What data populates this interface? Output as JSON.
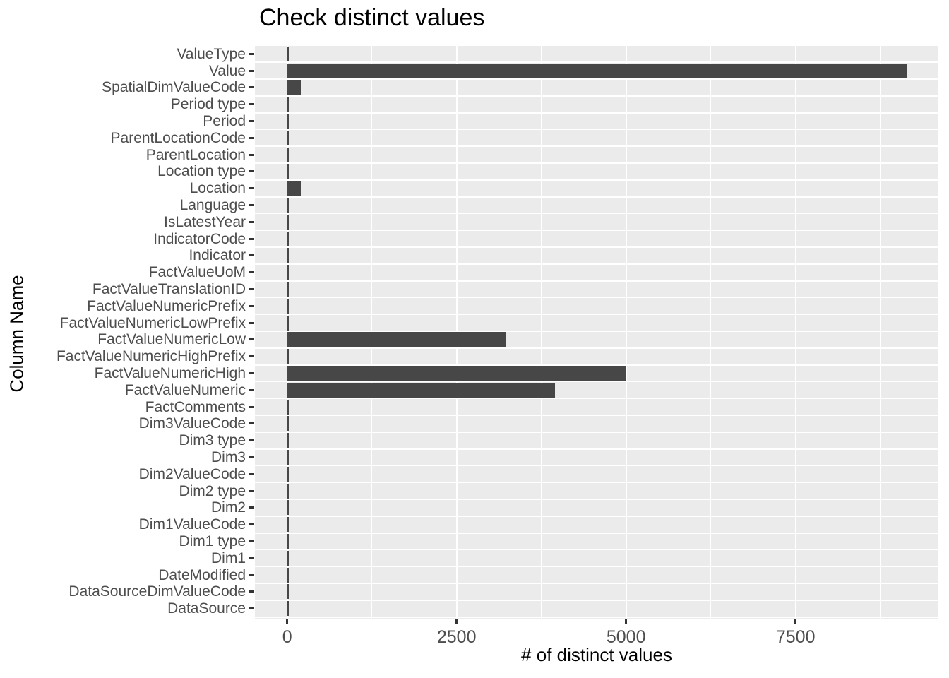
{
  "chart_data": {
    "type": "bar",
    "orientation": "horizontal",
    "title": "Check distinct values",
    "xlabel": "# of distinct values",
    "ylabel": "Column Name",
    "x_major_ticks": [
      0,
      2500,
      5000,
      7500
    ],
    "x_minor_ticks": [
      1250,
      3750,
      6250,
      8750
    ],
    "xlim": [
      0,
      9600
    ],
    "grid": true,
    "legend": "none",
    "categories": [
      "ValueType",
      "Value",
      "SpatialDimValueCode",
      "Period type",
      "Period",
      "ParentLocationCode",
      "ParentLocation",
      "Location type",
      "Location",
      "Language",
      "IsLatestYear",
      "IndicatorCode",
      "Indicator",
      "FactValueUoM",
      "FactValueTranslationID",
      "FactValueNumericPrefix",
      "FactValueNumericLowPrefix",
      "FactValueNumericLow",
      "FactValueNumericHighPrefix",
      "FactValueNumericHigh",
      "FactValueNumeric",
      "FactComments",
      "Dim3ValueCode",
      "Dim3 type",
      "Dim3",
      "Dim2ValueCode",
      "Dim2 type",
      "Dim2",
      "Dim1ValueCode",
      "Dim1 type",
      "Dim1",
      "DateModified",
      "DataSourceDimValueCode",
      "DataSource"
    ],
    "values": [
      20,
      9150,
      200,
      20,
      20,
      20,
      20,
      20,
      200,
      20,
      20,
      20,
      20,
      20,
      20,
      20,
      20,
      3230,
      20,
      5000,
      3950,
      20,
      20,
      20,
      20,
      20,
      20,
      20,
      20,
      20,
      20,
      20,
      20,
      20
    ],
    "colors": {
      "bar": "#474747",
      "panel_background": "#EBEBEB",
      "gridline": "#FFFFFF",
      "axis_text": "#4D4D4D",
      "axis_title": "#000000",
      "tick_mark": "#333333",
      "plot_background": "#FFFFFF"
    }
  }
}
